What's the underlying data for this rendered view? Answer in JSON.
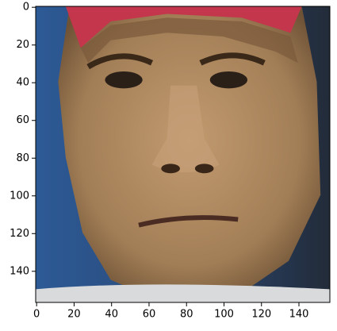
{
  "chart_data": {
    "type": "image",
    "xlim": [
      -0.5,
      156.5
    ],
    "ylim": [
      156.5,
      -0.5
    ],
    "xticks": [
      0,
      20,
      40,
      60,
      80,
      100,
      120,
      140
    ],
    "yticks": [
      0,
      20,
      40,
      60,
      80,
      100,
      120,
      140
    ]
  }
}
